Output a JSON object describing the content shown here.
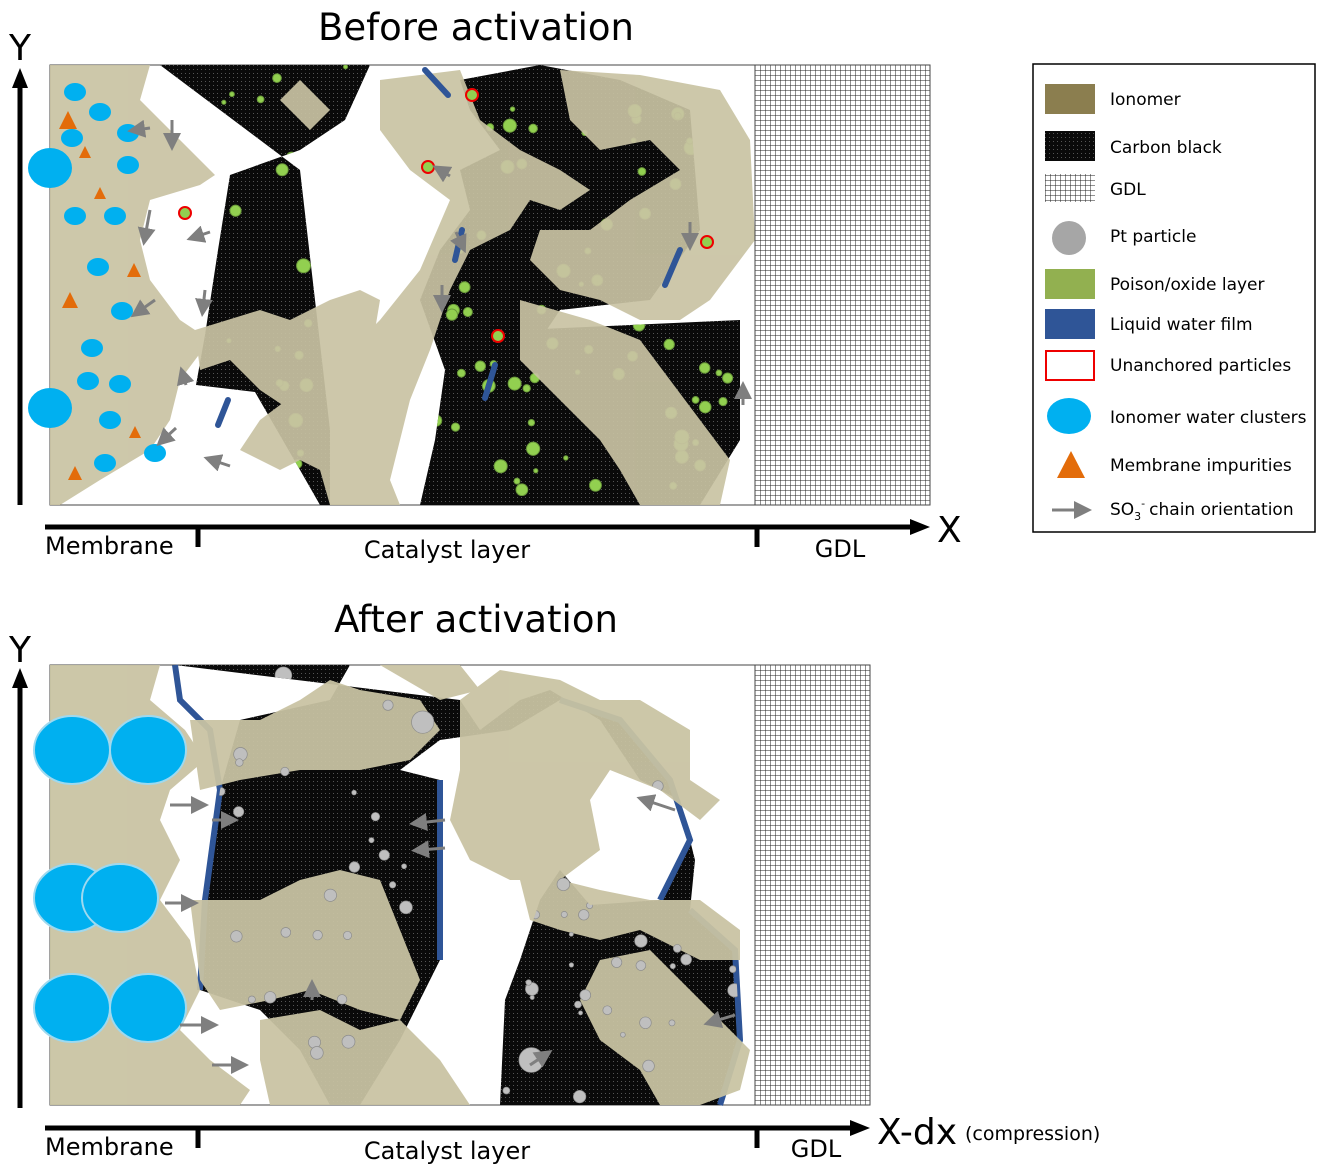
{
  "top": {
    "title": "Before activation",
    "y_axis": "Y",
    "x_axis": "X",
    "regions": [
      "Membrane",
      "Catalyst layer",
      "GDL"
    ]
  },
  "bottom": {
    "title": "After activation",
    "y_axis": "Y",
    "x_axis": "X-dx",
    "x_axis_note": "(compression)",
    "regions": [
      "Membrane",
      "Catalyst layer",
      "GDL"
    ]
  },
  "legend": {
    "items": [
      {
        "label": "Ionomer"
      },
      {
        "label": "Carbon black"
      },
      {
        "label": "GDL"
      },
      {
        "label": "Pt particle"
      },
      {
        "label": "Poison/oxide layer"
      },
      {
        "label": "Liquid water film"
      },
      {
        "label": "Unanchored particles"
      },
      {
        "label": "Ionomer water clusters"
      },
      {
        "label": "Membrane impurities"
      },
      {
        "label": "SO",
        "sub": "3",
        "sup": "-",
        "rest": "chain orientation"
      }
    ]
  }
}
